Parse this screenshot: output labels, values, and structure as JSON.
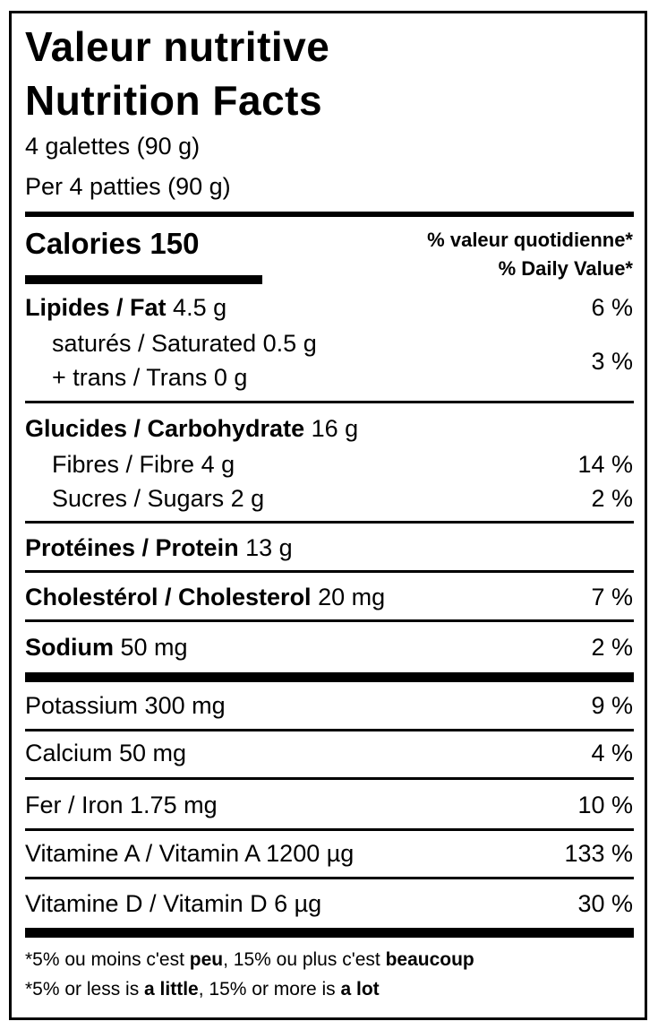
{
  "title_fr": "Valeur nutritive",
  "title_en": "Nutrition Facts",
  "serving_fr": "4 galettes (90 g)",
  "serving_en": "Per 4 patties (90 g)",
  "calories": {
    "label": "Calories",
    "value": "150"
  },
  "dv_header_fr": "% valeur quotidienne*",
  "dv_header_en": "% Daily Value*",
  "nutrients": {
    "fat": {
      "label": "Lipides / Fat",
      "amount": "4.5 g",
      "dv": "6 %"
    },
    "saturated": {
      "label": "saturés / Saturated",
      "amount": "0.5 g"
    },
    "trans": {
      "label": "+ trans / Trans",
      "amount": "0 g"
    },
    "sat_trans_dv": "3 %",
    "carbohydrate": {
      "label": "Glucides / Carbohydrate",
      "amount": "16 g"
    },
    "fibre": {
      "label": "Fibres / Fibre",
      "amount": "4 g",
      "dv": "14 %"
    },
    "sugars": {
      "label": "Sucres / Sugars",
      "amount": "2 g",
      "dv": "2 %"
    },
    "protein": {
      "label": "Protéines / Protein",
      "amount": "13 g"
    },
    "cholesterol": {
      "label": "Cholestérol / Cholesterol",
      "amount": "20 mg",
      "dv": "7 %"
    },
    "sodium": {
      "label": "Sodium",
      "amount": "50 mg",
      "dv": "2 %"
    }
  },
  "micronutrients": [
    {
      "label": "Potassium 300 mg",
      "dv": "9 %"
    },
    {
      "label": "Calcium 50 mg",
      "dv": "4 %"
    },
    {
      "label": "Fer / Iron 1.75 mg",
      "dv": "10 %"
    },
    {
      "label": "Vitamine A / Vitamin A 1200 µg",
      "dv": "133 %"
    },
    {
      "label": "Vitamine D / Vitamin D 6 µg",
      "dv": "30 %"
    }
  ],
  "footnote_fr": {
    "a": "*5% ou moins c'est ",
    "b": "peu",
    "c": ", 15% ou plus c'est ",
    "d": "beaucoup"
  },
  "footnote_en": {
    "a": "*5% or less is ",
    "b": "a little",
    "c": ", 15% or more is ",
    "d": "a lot"
  }
}
